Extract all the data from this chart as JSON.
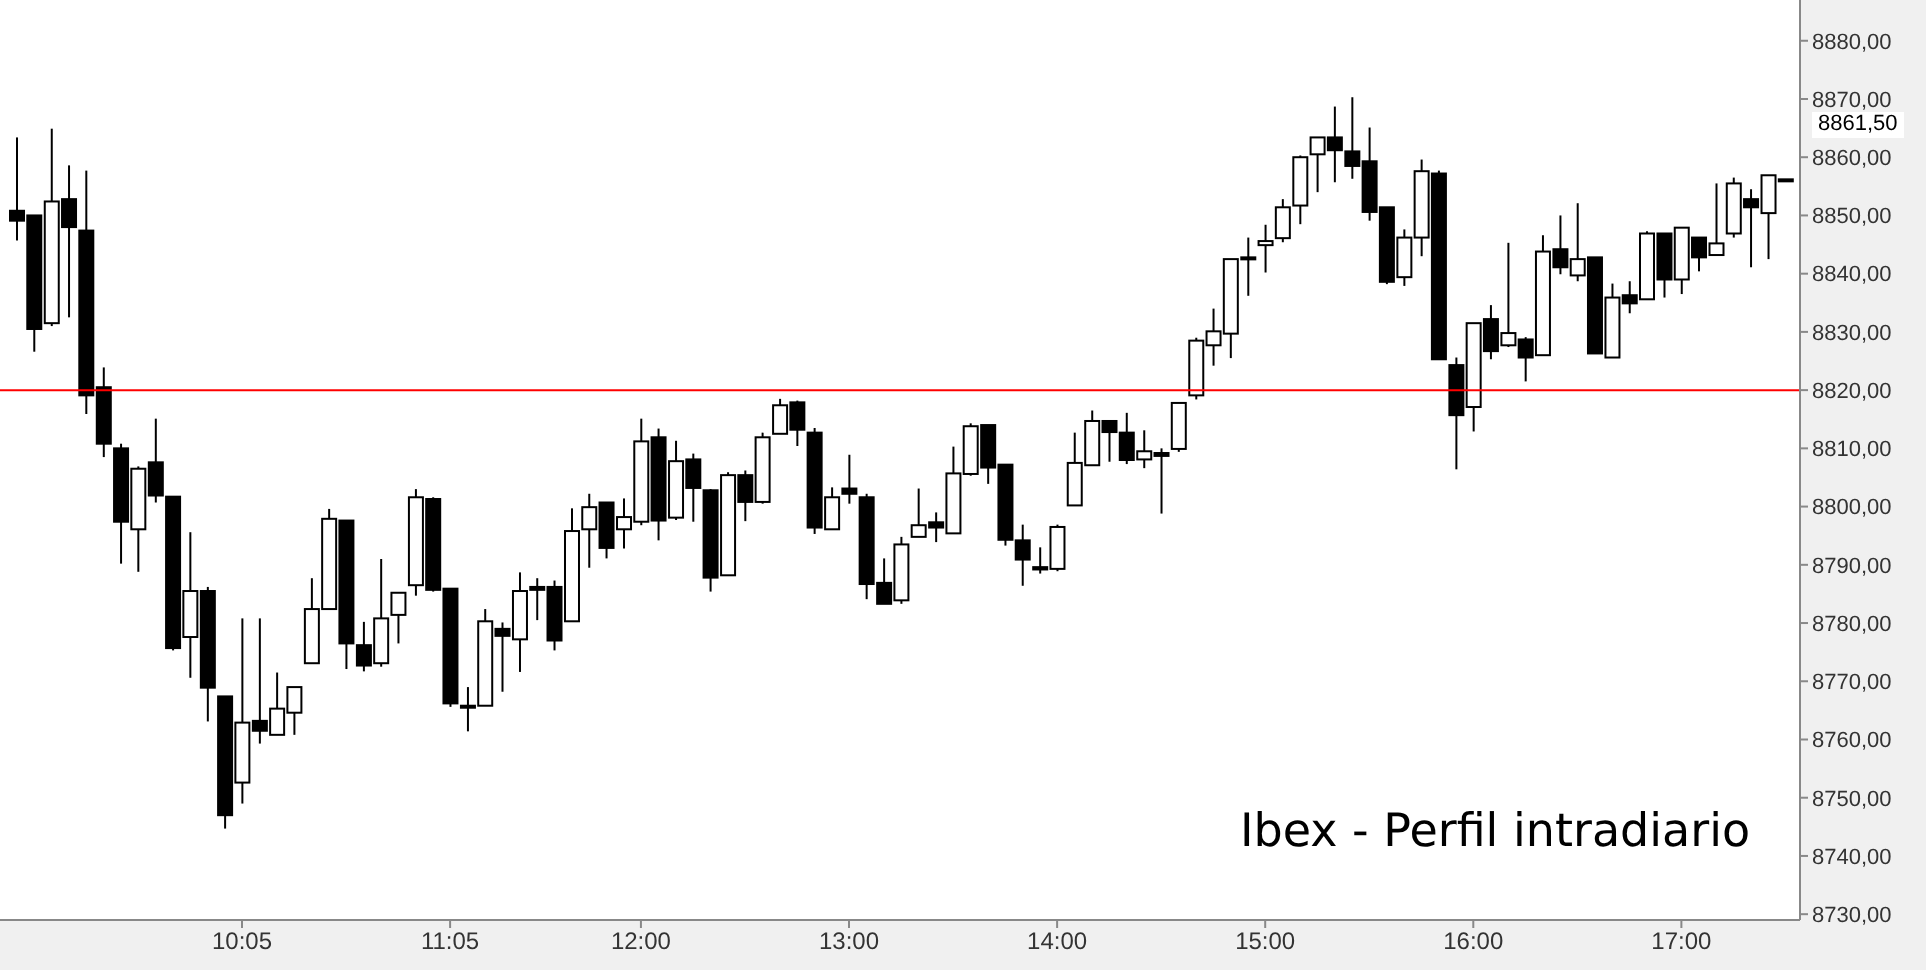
{
  "chart_data": {
    "type": "candlestick",
    "title": "Ibex - Perfil intradiario",
    "color": "#000000",
    "x": [
      9,
      9.083,
      9.167,
      9.25,
      9.333,
      9.417,
      9.5,
      9.583,
      9.667,
      9.75,
      9.833,
      9.917,
      10,
      10.083,
      10.167,
      10.25,
      10.333,
      10.417,
      10.5,
      10.583,
      10.667,
      10.75,
      10.833,
      10.917,
      11,
      11.083,
      11.167,
      11.25,
      11.333,
      11.417,
      11.5,
      11.583,
      11.667,
      11.75,
      11.833,
      11.917,
      12,
      12.083,
      12.167,
      12.25,
      12.333,
      12.417,
      12.5,
      12.583,
      12.667,
      12.75,
      12.833,
      12.917,
      13,
      13.083,
      13.167,
      13.25,
      13.333,
      13.417,
      13.5,
      13.583,
      13.667,
      13.75,
      13.833,
      13.917,
      14,
      14.083,
      14.167,
      14.25,
      14.333,
      14.417,
      14.5,
      14.583,
      14.667,
      14.75,
      14.833,
      14.917,
      15,
      15.083,
      15.167,
      15.25,
      15.333,
      15.417,
      15.5,
      15.583,
      15.667,
      15.75,
      15.833,
      15.917,
      16,
      16.083,
      16.167,
      16.25,
      16.333,
      16.417,
      16.5,
      16.583,
      16.667,
      16.75,
      16.833,
      16.917,
      17,
      17.083,
      17.167,
      17.25,
      17.333,
      17.417,
      17.5
    ],
    "ohlc": [
      [
        8850.8,
        8863.4,
        8845.7,
        8849.1
      ],
      [
        8850.0,
        8850.0,
        8826.6,
        8830.5
      ],
      [
        8831.5,
        8864.9,
        8831.0,
        8852.4
      ],
      [
        8852.8,
        8858.6,
        8832.5,
        8848.0
      ],
      [
        8847.4,
        8857.7,
        8815.9,
        8819.1
      ],
      [
        8820.5,
        8823.9,
        8808.5,
        8810.8
      ],
      [
        8810.0,
        8810.8,
        8790.2,
        8797.4
      ],
      [
        8796.1,
        8806.9,
        8788.8,
        8806.5
      ],
      [
        8807.6,
        8815.1,
        8800.7,
        8801.9
      ],
      [
        8801.7,
        8801.7,
        8775.3,
        8775.7
      ],
      [
        8777.6,
        8795.6,
        8770.6,
        8785.5
      ],
      [
        8785.5,
        8786.2,
        8763.1,
        8768.9
      ],
      [
        8767.4,
        8767.4,
        8744.7,
        8747.0
      ],
      [
        8752.6,
        8780.8,
        8749.0,
        8762.9
      ],
      [
        8763.2,
        8780.8,
        8759.3,
        8761.5
      ],
      [
        8760.8,
        8771.5,
        8760.8,
        8765.3
      ],
      [
        8764.6,
        8769.0,
        8760.8,
        8769.0
      ],
      [
        8773.1,
        8787.7,
        8773.1,
        8782.4
      ],
      [
        8782.4,
        8799.6,
        8782.4,
        8797.9
      ],
      [
        8797.6,
        8797.6,
        8772.1,
        8776.5
      ],
      [
        8776.2,
        8780.2,
        8771.7,
        8772.7
      ],
      [
        8773.1,
        8791.0,
        8772.5,
        8780.8
      ],
      [
        8781.4,
        8785.2,
        8776.5,
        8785.2
      ],
      [
        8786.5,
        8803.0,
        8784.7,
        8801.6
      ],
      [
        8801.3,
        8801.6,
        8785.4,
        8785.7
      ],
      [
        8785.9,
        8785.9,
        8765.6,
        8766.2
      ],
      [
        8765.8,
        8769.0,
        8761.4,
        8765.6
      ],
      [
        8765.8,
        8782.4,
        8765.8,
        8780.3
      ],
      [
        8779.0,
        8780.1,
        8768.2,
        8777.8
      ],
      [
        8777.2,
        8788.7,
        8771.6,
        8785.5
      ],
      [
        8786.2,
        8787.7,
        8780.5,
        8785.7
      ],
      [
        8786.2,
        8787.3,
        8775.3,
        8777.0
      ],
      [
        8780.3,
        8799.7,
        8780.3,
        8795.8
      ],
      [
        8796.1,
        8802.2,
        8789.5,
        8799.9
      ],
      [
        8800.7,
        8800.7,
        8791.1,
        8792.9
      ],
      [
        8796.1,
        8801.4,
        8792.8,
        8798.2
      ],
      [
        8797.4,
        8815.1,
        8796.8,
        8811.2
      ],
      [
        8811.9,
        8813.4,
        8794.2,
        8797.6
      ],
      [
        8798.1,
        8811.3,
        8797.7,
        8807.8
      ],
      [
        8808.1,
        8809.1,
        8797.4,
        8803.2
      ],
      [
        8802.8,
        8803.0,
        8785.4,
        8787.8
      ],
      [
        8788.2,
        8805.9,
        8788.2,
        8805.4
      ],
      [
        8805.4,
        8806.2,
        8797.5,
        8800.8
      ],
      [
        8800.8,
        8812.7,
        8800.5,
        8811.9
      ],
      [
        8812.5,
        8818.5,
        8812.5,
        8817.4
      ],
      [
        8817.9,
        8818.2,
        8810.4,
        8813.2
      ],
      [
        8812.7,
        8813.5,
        8795.3,
        8796.4
      ],
      [
        8796.1,
        8803.3,
        8796.1,
        8801.6
      ],
      [
        8803.1,
        8808.9,
        8800.5,
        8802.2
      ],
      [
        8801.6,
        8802.2,
        8784.1,
        8786.7
      ],
      [
        8786.9,
        8791.1,
        8783.3,
        8783.3
      ],
      [
        8783.9,
        8794.8,
        8783.3,
        8793.5
      ],
      [
        8794.8,
        8803.1,
        8794.8,
        8796.8
      ],
      [
        8797.3,
        8799.0,
        8793.9,
        8796.4
      ],
      [
        8795.4,
        8810.3,
        8795.4,
        8805.7
      ],
      [
        8805.6,
        8814.3,
        8805.3,
        8813.8
      ],
      [
        8814.0,
        8814.0,
        8803.9,
        8806.7
      ],
      [
        8807.2,
        8807.2,
        8793.3,
        8794.3
      ],
      [
        8794.2,
        8796.9,
        8786.4,
        8790.9
      ],
      [
        8789.6,
        8793.0,
        8788.5,
        8789.2
      ],
      [
        8789.3,
        8796.9,
        8788.9,
        8796.5
      ],
      [
        8800.2,
        8812.7,
        8800.2,
        8807.5
      ],
      [
        8807.1,
        8816.5,
        8807.1,
        8814.7
      ],
      [
        8814.7,
        8814.7,
        8807.7,
        8812.8
      ],
      [
        8812.7,
        8816.1,
        8807.3,
        8808.0
      ],
      [
        8808.1,
        8813.1,
        8806.6,
        8809.5
      ],
      [
        8809.2,
        8810.0,
        8798.8,
        8808.7
      ],
      [
        8809.9,
        8817.8,
        8809.4,
        8817.8
      ],
      [
        8819.1,
        8829.0,
        8818.4,
        8828.5
      ],
      [
        8827.7,
        8834.0,
        8824.2,
        8830.1
      ],
      [
        8829.7,
        8842.5,
        8825.5,
        8842.5
      ],
      [
        8842.8,
        8846.2,
        8836.2,
        8842.5
      ],
      [
        8844.9,
        8848.4,
        8840.2,
        8845.6
      ],
      [
        8846.1,
        8852.8,
        8845.4,
        8851.4
      ],
      [
        8851.7,
        8860.3,
        8848.5,
        8860.0
      ],
      [
        8860.5,
        8863.4,
        8854.0,
        8863.4
      ],
      [
        8863.4,
        8868.7,
        8855.7,
        8861.2
      ],
      [
        8861.0,
        8870.3,
        8856.3,
        8858.5
      ],
      [
        8859.3,
        8865.1,
        8849.1,
        8850.6
      ],
      [
        8851.4,
        8851.4,
        8838.2,
        8838.6
      ],
      [
        8839.4,
        8847.6,
        8837.9,
        8846.2
      ],
      [
        8846.2,
        8859.6,
        8843.0,
        8857.6
      ],
      [
        8857.2,
        8857.7,
        8825.3,
        8825.3
      ],
      [
        8824.3,
        8825.6,
        8806.4,
        8815.7
      ],
      [
        8817.1,
        8831.5,
        8812.9,
        8831.5
      ],
      [
        8832.2,
        8834.6,
        8825.3,
        8826.7
      ],
      [
        8827.7,
        8845.3,
        8827.4,
        8829.8
      ],
      [
        8828.7,
        8829.1,
        8821.5,
        8825.6
      ],
      [
        8826.0,
        8846.6,
        8826.0,
        8843.8
      ],
      [
        8844.2,
        8850.0,
        8839.9,
        8841.1
      ],
      [
        8839.7,
        8852.1,
        8838.7,
        8842.5
      ],
      [
        8842.8,
        8842.8,
        8826.3,
        8826.3
      ],
      [
        8825.6,
        8838.3,
        8825.6,
        8835.9
      ],
      [
        8836.3,
        8838.7,
        8833.2,
        8834.9
      ],
      [
        8835.6,
        8847.3,
        8835.6,
        8846.9
      ],
      [
        8846.9,
        8846.9,
        8835.9,
        8839.0
      ],
      [
        8839.0,
        8847.9,
        8836.5,
        8847.9
      ],
      [
        8846.2,
        8846.2,
        8840.4,
        8842.8
      ],
      [
        8843.2,
        8855.5,
        8843.2,
        8845.2
      ],
      [
        8846.9,
        8856.5,
        8846.2,
        8855.5
      ],
      [
        8852.8,
        8854.5,
        8841.1,
        8851.4
      ],
      [
        8850.4,
        8856.9,
        8842.5,
        8856.9
      ],
      [
        8856.2,
        8856.2,
        8855.9,
        8855.9
      ]
    ],
    "xlim": [
      8.92,
      17.57
    ],
    "xticks": [
      {
        "value": 10.083,
        "label": "10:05"
      },
      {
        "value": 11.083,
        "label": "11:05"
      },
      {
        "value": 12,
        "label": "12:00"
      },
      {
        "value": 13,
        "label": "13:00"
      },
      {
        "value": 14,
        "label": "14:00"
      },
      {
        "value": 15,
        "label": "15:00"
      },
      {
        "value": 16,
        "label": "16:00"
      },
      {
        "value": 17,
        "label": "17:00"
      }
    ],
    "ylim": [
      8729,
      8887
    ],
    "yticks": [
      {
        "value": 8730,
        "label": "8730,00"
      },
      {
        "value": 8740,
        "label": "8740,00"
      },
      {
        "value": 8750,
        "label": "8750,00"
      },
      {
        "value": 8760,
        "label": "8760,00"
      },
      {
        "value": 8770,
        "label": "8770,00"
      },
      {
        "value": 8780,
        "label": "8780,00"
      },
      {
        "value": 8790,
        "label": "8790,00"
      },
      {
        "value": 8800,
        "label": "8800,00"
      },
      {
        "value": 8810,
        "label": "8810,00"
      },
      {
        "value": 8820,
        "label": "8820,00"
      },
      {
        "value": 8830,
        "label": "8830,00"
      },
      {
        "value": 8840,
        "label": "8840,00"
      },
      {
        "value": 8850,
        "label": "8850,00"
      },
      {
        "value": 8860,
        "label": "8860,00"
      },
      {
        "value": 8870,
        "label": "8870,00"
      },
      {
        "value": 8880,
        "label": "8880,00"
      }
    ],
    "ref_lines": [
      {
        "axis": "y",
        "value": 8820,
        "color": "#ff0000"
      }
    ],
    "annotations": [
      "8861,50"
    ]
  }
}
